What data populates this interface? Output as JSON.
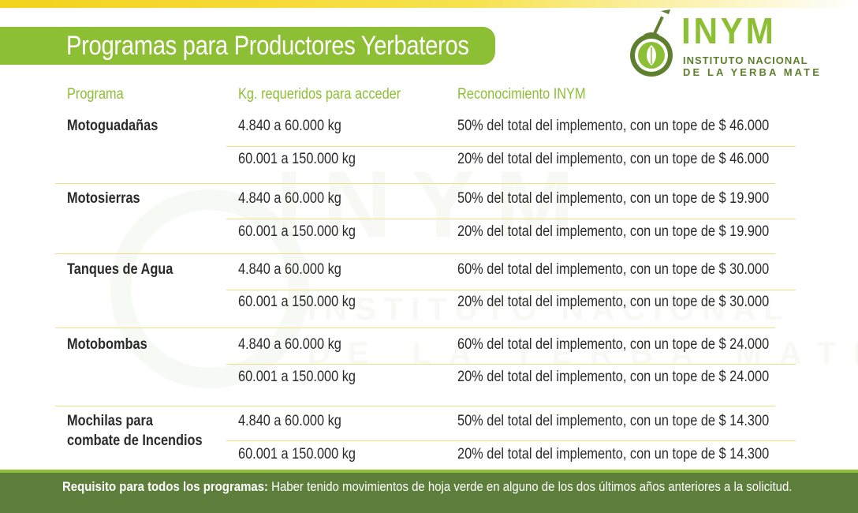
{
  "title": "Programas para Productores Yerbateros",
  "logo": {
    "acronym": "INYM",
    "line1": "INSTITUTO NACIONAL",
    "line2": "DE LA YERBA MATE"
  },
  "colors": {
    "brand_green": "#8dbf34",
    "dark_green": "#5d7f3b",
    "accent_yellow": "#f2d21b",
    "divider": "#ecdf8a"
  },
  "headers": {
    "programa": "Programa",
    "kg": "Kg. requeridos para acceder",
    "reconocimiento": "Reconocimiento INYM"
  },
  "programs": [
    {
      "name": "Motoguadañas",
      "rows": [
        {
          "kg": "4.840 a 60.000 kg",
          "rec": "50% del total del implemento, con un tope de $ 46.000"
        },
        {
          "kg": "60.001 a 150.000 kg",
          "rec": "20% del total del implemento, con un tope de $ 46.000"
        }
      ]
    },
    {
      "name": "Motosierras",
      "rows": [
        {
          "kg": "4.840 a 60.000 kg",
          "rec": "50% del total del implemento, con un tope de $ 19.900"
        },
        {
          "kg": "60.001 a 150.000 kg",
          "rec": "20% del total del implemento, con un tope de $ 19.900"
        }
      ]
    },
    {
      "name": "Tanques de Agua",
      "rows": [
        {
          "kg": "4.840 a 60.000 kg",
          "rec": "60% del total del implemento, con un tope de $ 30.000"
        },
        {
          "kg": "60.001 a 150.000 kg",
          "rec": "20% del total del implemento, con un tope de $ 30.000"
        }
      ]
    },
    {
      "name": "Motobombas",
      "rows": [
        {
          "kg": "4.840 a 60.000 kg",
          "rec": "60% del total del implemento, con un tope de $ 24.000"
        },
        {
          "kg": "60.001 a 150.000 kg",
          "rec": "20% del total del implemento, con un tope de $ 24.000"
        }
      ]
    },
    {
      "name_line1": "Mochilas para",
      "name_line2": "combate de Incendios",
      "rows": [
        {
          "kg": "4.840 a 60.000 kg",
          "rec": "50% del total del implemento, con un tope de $ 14.300"
        },
        {
          "kg": "60.001 a 150.000 kg",
          "rec": "20% del total del implemento, con un tope de $ 14.300"
        }
      ]
    }
  ],
  "footer": {
    "label": "Requisito para todos los programas:",
    "text": " Haber tenido movimientos de hoja verde en alguno de los dos últimos años anteriores a la solicitud."
  }
}
